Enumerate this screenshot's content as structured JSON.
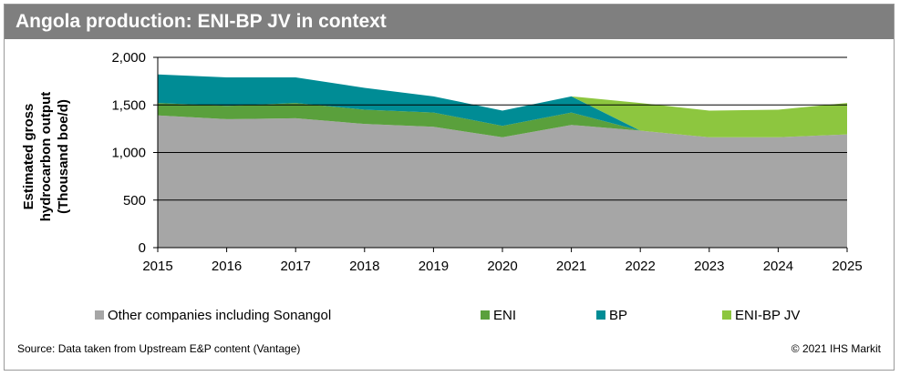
{
  "title": "Angola production: ENI-BP JV in context",
  "footer": {
    "source": "Source: Data taken from Upstream E&P content (Vantage)",
    "copyright": "© 2021 IHS Markit"
  },
  "colors": {
    "title_bg": "#7f7f7f",
    "other": "#a6a6a6",
    "eni": "#5aa03c",
    "bp": "#008c95",
    "jv": "#8dc63f"
  },
  "chart_data": {
    "type": "area",
    "stacked": true,
    "title": "Angola production: ENI-BP JV in context",
    "xlabel": "",
    "ylabel_lines": [
      "Estimated gross",
      "hydrocarbon output",
      "(Thousand boe/d)"
    ],
    "ylim": [
      0,
      2000
    ],
    "yticks": [
      0,
      500,
      1000,
      1500,
      2000
    ],
    "ytick_labels": [
      "0",
      "500",
      "1,000",
      "1,500",
      "2,000"
    ],
    "x": [
      "2015",
      "2016",
      "2017",
      "2018",
      "2019",
      "2020",
      "2021",
      "2022",
      "2023",
      "2024",
      "2025"
    ],
    "grid": "horizontal",
    "legend_position": "bottom",
    "series": [
      {
        "name": "Other companies including Sonangol",
        "color": "#a6a6a6",
        "values": [
          1390,
          1350,
          1360,
          1300,
          1270,
          1160,
          1290,
          1230,
          1160,
          1160,
          1190
        ]
      },
      {
        "name": "ENI",
        "color": "#5aa03c",
        "values": [
          130,
          140,
          160,
          150,
          150,
          120,
          130,
          0,
          0,
          0,
          0
        ]
      },
      {
        "name": "BP",
        "color": "#008c95",
        "values": [
          300,
          300,
          270,
          230,
          170,
          160,
          170,
          0,
          0,
          0,
          0
        ]
      },
      {
        "name": "ENI-BP JV",
        "color": "#8dc63f",
        "values": [
          0,
          0,
          0,
          0,
          0,
          0,
          0,
          290,
          280,
          290,
          330
        ]
      }
    ]
  }
}
